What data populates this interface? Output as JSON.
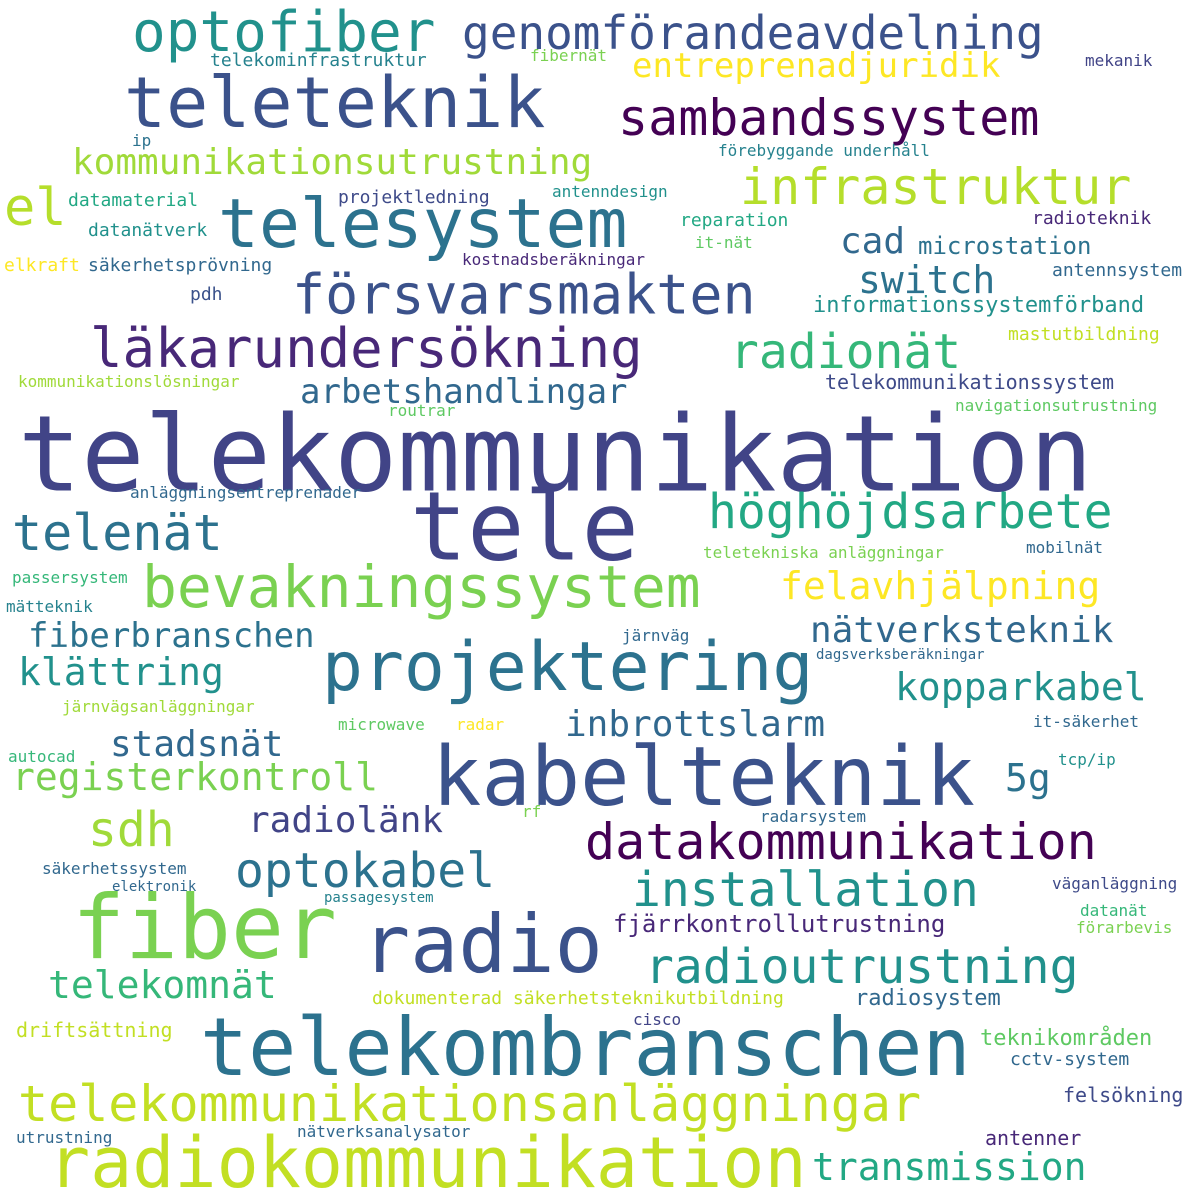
{
  "words": [
    {
      "text": "telekommunikation",
      "color": "#414487"
    },
    {
      "text": "tele",
      "color": "#414487"
    },
    {
      "text": "kabelteknik",
      "color": "#3b528b"
    },
    {
      "text": "telekombranschen",
      "color": "#2c728e"
    },
    {
      "text": "radiokommunikation",
      "color": "#c2df23"
    },
    {
      "text": "fiber",
      "color": "#7ad151"
    },
    {
      "text": "radio",
      "color": "#3b528b"
    },
    {
      "text": "teleteknik",
      "color": "#3b528b"
    },
    {
      "text": "projektering",
      "color": "#2c728e"
    },
    {
      "text": "telesystem",
      "color": "#2c728e"
    },
    {
      "text": "optofiber",
      "color": "#21918c"
    },
    {
      "text": "genomförandeavdelning",
      "color": "#3b528b"
    },
    {
      "text": "försvarsmakten",
      "color": "#3b528b"
    },
    {
      "text": "läkarundersökning",
      "color": "#482878"
    },
    {
      "text": "bevakningssystem",
      "color": "#7ad151"
    },
    {
      "text": "telekommunikationsanläggningar",
      "color": "#c2df23"
    },
    {
      "text": "datakommunikation",
      "color": "#440154"
    },
    {
      "text": "sambandssystem",
      "color": "#440154"
    },
    {
      "text": "infrastruktur",
      "color": "#b5de2b"
    },
    {
      "text": "höghöjdsarbete",
      "color": "#22a884"
    },
    {
      "text": "radioutrustning",
      "color": "#21918c"
    },
    {
      "text": "installation",
      "color": "#21918c"
    },
    {
      "text": "optokabel",
      "color": "#2c728e"
    },
    {
      "text": "radionät",
      "color": "#35b779"
    },
    {
      "text": "telenät",
      "color": "#2c728e"
    },
    {
      "text": "sdh",
      "color": "#a0da39"
    },
    {
      "text": "transmission",
      "color": "#22a884"
    },
    {
      "text": "registerkontroll",
      "color": "#7ad151"
    },
    {
      "text": "telekomnät",
      "color": "#35b779"
    },
    {
      "text": "kommunikationsutrustning",
      "color": "#a0da39"
    },
    {
      "text": "felavhjälpning",
      "color": "#fde725"
    },
    {
      "text": "el",
      "color": "#b5de2b"
    },
    {
      "text": "klättring",
      "color": "#21918c"
    },
    {
      "text": "kopparkabel",
      "color": "#21918c"
    },
    {
      "text": "entreprenadjuridik",
      "color": "#fde725"
    },
    {
      "text": "fiberbranschen",
      "color": "#2c728e"
    },
    {
      "text": "nätverksteknik",
      "color": "#31688e"
    },
    {
      "text": "inbrottslarm",
      "color": "#31688e"
    },
    {
      "text": "radiolänk",
      "color": "#414487"
    },
    {
      "text": "stadsnät",
      "color": "#31688e"
    },
    {
      "text": "arbetshandlingar",
      "color": "#31688e"
    },
    {
      "text": "switch",
      "color": "#2c728e"
    },
    {
      "text": "fjärrkontrollutrustning",
      "color": "#482878"
    },
    {
      "text": "5g",
      "color": "#2c728e"
    },
    {
      "text": "cad",
      "color": "#31688e"
    },
    {
      "text": "microstation",
      "color": "#2c728e"
    },
    {
      "text": "informationssystemförband",
      "color": "#21918c"
    },
    {
      "text": "radiosystem",
      "color": "#31688e"
    },
    {
      "text": "telekommunikationssystem",
      "color": "#3e4a89"
    },
    {
      "text": "teknikområden",
      "color": "#5ec962"
    },
    {
      "text": "dokumenterad säkerhetsteknikutbildning",
      "color": "#c2df23"
    },
    {
      "text": "nätverksanalysator",
      "color": "#31688e"
    },
    {
      "text": "antenner",
      "color": "#482878"
    },
    {
      "text": "felsökning",
      "color": "#3e4a89"
    },
    {
      "text": "cctv-system",
      "color": "#31688e"
    },
    {
      "text": "driftsättning",
      "color": "#c2df23"
    },
    {
      "text": "radioteknik",
      "color": "#482878"
    },
    {
      "text": "antennsystem",
      "color": "#31688e"
    },
    {
      "text": "mastutbildning",
      "color": "#c2df23"
    },
    {
      "text": "navigationsutrustning",
      "color": "#5ec962"
    },
    {
      "text": "telekominfrastruktur",
      "color": "#26828e"
    },
    {
      "text": "fibernät",
      "color": "#7ad151"
    },
    {
      "text": "mekanik",
      "color": "#414487"
    },
    {
      "text": "förebyggande underhåll",
      "color": "#26828e"
    },
    {
      "text": "ip",
      "color": "#2c728e"
    },
    {
      "text": "projektledning",
      "color": "#3e4a89"
    },
    {
      "text": "antenndesign",
      "color": "#21918c"
    },
    {
      "text": "datamaterial",
      "color": "#22a884"
    },
    {
      "text": "datanätverk",
      "color": "#21918c"
    },
    {
      "text": "reparation",
      "color": "#22a884"
    },
    {
      "text": "it-nät",
      "color": "#5ec962"
    },
    {
      "text": "elkraft",
      "color": "#fde725"
    },
    {
      "text": "säkerhetsprövning",
      "color": "#31688e"
    },
    {
      "text": "kostnadsberäkningar",
      "color": "#482878"
    },
    {
      "text": "pdh",
      "color": "#3b528b"
    },
    {
      "text": "kommunikationslösningar",
      "color": "#a0da39"
    },
    {
      "text": "routrar",
      "color": "#5ec962"
    },
    {
      "text": "anläggningsentreprenader",
      "color": "#31688e"
    },
    {
      "text": "teletekniska anläggningar",
      "color": "#7ad151"
    },
    {
      "text": "mobilnät",
      "color": "#31688e"
    },
    {
      "text": "passersystem",
      "color": "#35b779"
    },
    {
      "text": "mätteknik",
      "color": "#26828e"
    },
    {
      "text": "järnväg",
      "color": "#31688e"
    },
    {
      "text": "dagsverksberäkningar",
      "color": "#31688e"
    },
    {
      "text": "järnvägsanläggningar",
      "color": "#a0da39"
    },
    {
      "text": "microwave",
      "color": "#5ec962"
    },
    {
      "text": "radar",
      "color": "#fde725"
    },
    {
      "text": "it-säkerhet",
      "color": "#31688e"
    },
    {
      "text": "autocad",
      "color": "#35b779"
    },
    {
      "text": "tcp/ip",
      "color": "#21918c"
    },
    {
      "text": "rf",
      "color": "#7ad151"
    },
    {
      "text": "radarsystem",
      "color": "#31688e"
    },
    {
      "text": "säkerhetssystem",
      "color": "#31688e"
    },
    {
      "text": "elektronik",
      "color": "#31688e"
    },
    {
      "text": "passagesystem",
      "color": "#26828e"
    },
    {
      "text": "väganläggning",
      "color": "#3e4a89"
    },
    {
      "text": "datanät",
      "color": "#35b779"
    },
    {
      "text": "förarbevis",
      "color": "#7ad151"
    },
    {
      "text": "cisco",
      "color": "#414487"
    },
    {
      "text": "utrustning",
      "color": "#31688e"
    }
  ]
}
